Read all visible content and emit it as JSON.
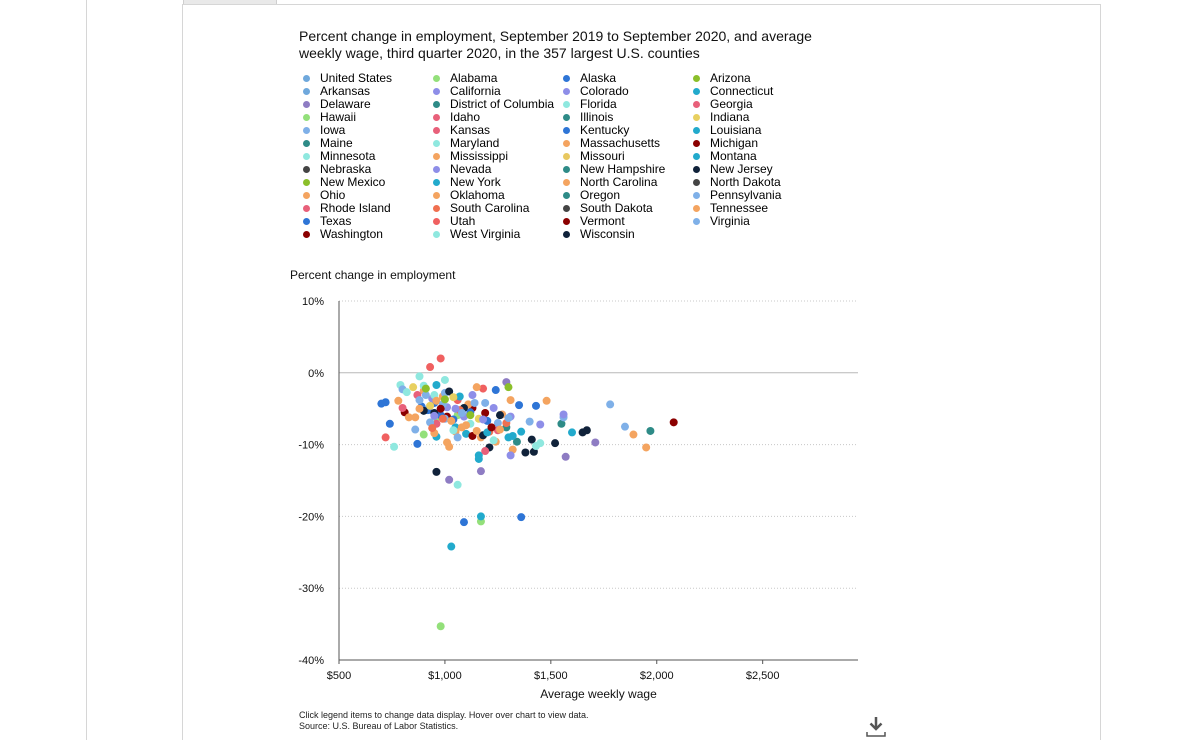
{
  "title": "Percent change in employment, September 2019 to September 2020, and average weekly wage, third quarter 2020, in the 357 largest U.S. counties",
  "footnote": {
    "line1": "Click legend items to change data display. Hover over chart to view data.",
    "line2": "Source: U.S. Bureau of Labor Statistics."
  },
  "icons": {
    "download": "download-icon"
  },
  "legend": [
    {
      "name": "United States",
      "color": "#6fa8dc"
    },
    {
      "name": "Arkansas",
      "color": "#6fa8dc"
    },
    {
      "name": "Delaware",
      "color": "#8e7cc3"
    },
    {
      "name": "Hawaii",
      "color": "#93e07a"
    },
    {
      "name": "Iowa",
      "color": "#7fb0e8"
    },
    {
      "name": "Maine",
      "color": "#2e8b87"
    },
    {
      "name": "Minnesota",
      "color": "#8fe8df"
    },
    {
      "name": "Nebraska",
      "color": "#444444"
    },
    {
      "name": "New Mexico",
      "color": "#8bbf2a"
    },
    {
      "name": "Ohio",
      "color": "#f4a460"
    },
    {
      "name": "Rhode Island",
      "color": "#e8607a"
    },
    {
      "name": "Texas",
      "color": "#2e75d6"
    },
    {
      "name": "Washington",
      "color": "#8b0000"
    },
    {
      "name": "Alabama",
      "color": "#93e07a"
    },
    {
      "name": "California",
      "color": "#8e8ee8"
    },
    {
      "name": "District of Columbia",
      "color": "#2e8b87"
    },
    {
      "name": "Idaho",
      "color": "#e8607a"
    },
    {
      "name": "Kansas",
      "color": "#e8607a"
    },
    {
      "name": "Maryland",
      "color": "#8fe8df"
    },
    {
      "name": "Mississippi",
      "color": "#f4a460"
    },
    {
      "name": "Nevada",
      "color": "#8e8ee8"
    },
    {
      "name": "New York",
      "color": "#22aacc"
    },
    {
      "name": "Oklahoma",
      "color": "#f4a460"
    },
    {
      "name": "South Carolina",
      "color": "#f07050"
    },
    {
      "name": "Utah",
      "color": "#f06060"
    },
    {
      "name": "West Virginia",
      "color": "#8fe8df"
    },
    {
      "name": "Alaska",
      "color": "#2e75d6"
    },
    {
      "name": "Colorado",
      "color": "#8e8ee8"
    },
    {
      "name": "Florida",
      "color": "#8fe8df"
    },
    {
      "name": "Illinois",
      "color": "#2e8b87"
    },
    {
      "name": "Kentucky",
      "color": "#2e75d6"
    },
    {
      "name": "Massachusetts",
      "color": "#f4a460"
    },
    {
      "name": "Missouri",
      "color": "#e8c860"
    },
    {
      "name": "New Hampshire",
      "color": "#2e8b87"
    },
    {
      "name": "North Carolina",
      "color": "#f4a460"
    },
    {
      "name": "Oregon",
      "color": "#2e8b87"
    },
    {
      "name": "South Dakota",
      "color": "#444444"
    },
    {
      "name": "Vermont",
      "color": "#8b0000"
    },
    {
      "name": "Wisconsin",
      "color": "#10223a"
    },
    {
      "name": "Arizona",
      "color": "#8bbf2a"
    },
    {
      "name": "Connecticut",
      "color": "#22aacc"
    },
    {
      "name": "Georgia",
      "color": "#e8607a"
    },
    {
      "name": "Indiana",
      "color": "#e8d060"
    },
    {
      "name": "Louisiana",
      "color": "#22aacc"
    },
    {
      "name": "Michigan",
      "color": "#8b0000"
    },
    {
      "name": "Montana",
      "color": "#22aacc"
    },
    {
      "name": "New Jersey",
      "color": "#10223a"
    },
    {
      "name": "North Dakota",
      "color": "#444444"
    },
    {
      "name": "Pennsylvania",
      "color": "#7fb0e8"
    },
    {
      "name": "Tennessee",
      "color": "#f4a460"
    },
    {
      "name": "Virginia",
      "color": "#7fb0e8"
    }
  ],
  "chart_data": {
    "type": "scatter",
    "title": "Percent change in employment, September 2019 to September 2020, and average weekly wage, third quarter 2020, in the 357 largest U.S. counties",
    "xlabel": "Average weekly wage",
    "ylabel": "Percent change in employment",
    "xlim": [
      500,
      2950
    ],
    "ylim": [
      -40,
      10
    ],
    "xticks": [
      500,
      1000,
      1500,
      2000,
      2500
    ],
    "xtick_labels": [
      "$500",
      "$1,000",
      "$1,500",
      "$2,000",
      "$2,500"
    ],
    "yticks": [
      10,
      0,
      -10,
      -20,
      -30,
      -40
    ],
    "ytick_labels": [
      "10%",
      "0%",
      "-10%",
      "-20%",
      "-30%",
      "-40%"
    ],
    "grid": "horizontal dotted",
    "series": [
      {
        "name": "Alabama",
        "color": "#93e07a",
        "points": [
          [
            980,
            -35.3
          ],
          [
            1170,
            -20.7
          ],
          [
            900,
            -8.6
          ],
          [
            960,
            -6.2
          ],
          [
            1060,
            -5.9
          ]
        ]
      },
      {
        "name": "Connecticut",
        "color": "#22aacc",
        "points": [
          [
            1030,
            -24.2
          ],
          [
            1170,
            -20.0
          ],
          [
            1160,
            -11.5
          ],
          [
            1300,
            -9.0
          ],
          [
            1600,
            -8.3
          ]
        ]
      },
      {
        "name": "Louisiana",
        "color": "#22aacc",
        "points": [
          [
            1160,
            -12.0
          ],
          [
            1050,
            -7.6
          ],
          [
            960,
            -8.9
          ],
          [
            1100,
            -8.5
          ]
        ]
      },
      {
        "name": "Kentucky",
        "color": "#2e75d6",
        "points": [
          [
            1090,
            -20.8
          ],
          [
            1360,
            -20.1
          ],
          [
            700,
            -4.3
          ],
          [
            720,
            -4.1
          ],
          [
            740,
            -7.1
          ],
          [
            870,
            -9.9
          ],
          [
            1240,
            -2.4
          ]
        ]
      },
      {
        "name": "Delaware",
        "color": "#8e7cc3",
        "points": [
          [
            1020,
            -14.9
          ],
          [
            1170,
            -13.7
          ],
          [
            1570,
            -11.7
          ],
          [
            1710,
            -9.7
          ],
          [
            1290,
            -1.3
          ]
        ]
      },
      {
        "name": "Minnesota",
        "color": "#8fe8df",
        "points": [
          [
            1060,
            -15.6
          ],
          [
            760,
            -10.3
          ],
          [
            790,
            -1.7
          ],
          [
            880,
            -0.5
          ],
          [
            1000,
            -1.0
          ]
        ]
      },
      {
        "name": "New Jersey",
        "color": "#10223a",
        "points": [
          [
            960,
            -13.8
          ],
          [
            1210,
            -10.4
          ],
          [
            1380,
            -11.1
          ],
          [
            1410,
            -9.3
          ],
          [
            1420,
            -11.0
          ],
          [
            1520,
            -9.8
          ],
          [
            1650,
            -8.3
          ],
          [
            1670,
            -8.0
          ]
        ]
      },
      {
        "name": "Utah",
        "color": "#f06060",
        "points": [
          [
            930,
            0.8
          ],
          [
            980,
            2.0
          ],
          [
            720,
            -9.0
          ],
          [
            1180,
            -2.2
          ],
          [
            1060,
            -3.8
          ]
        ]
      },
      {
        "name": "Michigan",
        "color": "#8b0000",
        "points": [
          [
            2080,
            -6.9
          ],
          [
            810,
            -5.5
          ],
          [
            1010,
            -6.1
          ],
          [
            1130,
            -4.9
          ],
          [
            1190,
            -5.6
          ]
        ]
      },
      {
        "name": "Illinois",
        "color": "#2e8b87",
        "points": [
          [
            1970,
            -8.1
          ],
          [
            1340,
            -9.6
          ],
          [
            1290,
            -7.6
          ],
          [
            1550,
            -7.1
          ]
        ]
      },
      {
        "name": "Tennessee",
        "color": "#f4a460",
        "points": [
          [
            1950,
            -10.4
          ],
          [
            1890,
            -8.6
          ],
          [
            1480,
            -3.9
          ],
          [
            830,
            -6.2
          ],
          [
            1050,
            -8.2
          ],
          [
            1320,
            -10.7
          ]
        ]
      },
      {
        "name": "Pennsylvania",
        "color": "#7fb0e8",
        "points": [
          [
            1850,
            -7.5
          ],
          [
            1780,
            -4.4
          ],
          [
            1560,
            -6.2
          ],
          [
            1250,
            -7.0
          ],
          [
            1000,
            -6.4
          ],
          [
            860,
            -7.9
          ]
        ]
      },
      {
        "name": "Texas",
        "color": "#2e75d6",
        "points": [
          [
            890,
            -4.7
          ],
          [
            920,
            -5.2
          ],
          [
            950,
            -4.2
          ],
          [
            980,
            -5.9
          ],
          [
            1040,
            -6.5
          ],
          [
            1120,
            -5.5
          ],
          [
            1200,
            -6.7
          ],
          [
            1350,
            -4.5
          ],
          [
            1430,
            -4.6
          ]
        ]
      },
      {
        "name": "California",
        "color": "#8e8ee8",
        "points": [
          [
            940,
            -3.6
          ],
          [
            1010,
            -4.8
          ],
          [
            1090,
            -6.1
          ],
          [
            1130,
            -3.1
          ],
          [
            1230,
            -4.9
          ],
          [
            1310,
            -6.1
          ],
          [
            1450,
            -7.2
          ],
          [
            1560,
            -5.8
          ]
        ]
      },
      {
        "name": "Ohio",
        "color": "#f4a460",
        "points": [
          [
            860,
            -6.2
          ],
          [
            950,
            -8.4
          ],
          [
            1020,
            -10.3
          ],
          [
            1080,
            -7.6
          ],
          [
            1150,
            -2.0
          ],
          [
            1270,
            -5.8
          ],
          [
            1310,
            -3.8
          ]
        ]
      },
      {
        "name": "Massachusetts",
        "color": "#f4a460",
        "points": [
          [
            900,
            -2.5
          ],
          [
            990,
            -3.3
          ],
          [
            1110,
            -4.4
          ],
          [
            1170,
            -9.0
          ],
          [
            1240,
            -9.6
          ]
        ]
      },
      {
        "name": "Georgia",
        "color": "#e8607a",
        "points": [
          [
            800,
            -4.9
          ],
          [
            870,
            -3.1
          ],
          [
            960,
            -7.1
          ],
          [
            1190,
            -10.9
          ],
          [
            1250,
            -8.0
          ]
        ]
      },
      {
        "name": "Iowa",
        "color": "#7fb0e8",
        "points": [
          [
            800,
            -2.3
          ],
          [
            880,
            -3.8
          ],
          [
            930,
            -6.9
          ],
          [
            1000,
            -2.8
          ],
          [
            1060,
            -9.0
          ],
          [
            1140,
            -4.2
          ]
        ]
      },
      {
        "name": "Wisconsin",
        "color": "#10223a",
        "points": [
          [
            900,
            -5.3
          ],
          [
            950,
            -5.6
          ],
          [
            1020,
            -2.6
          ],
          [
            1090,
            -4.9
          ],
          [
            1180,
            -8.7
          ],
          [
            1260,
            -5.9
          ]
        ]
      },
      {
        "name": "Florida",
        "color": "#8fe8df",
        "points": [
          [
            900,
            -1.8
          ],
          [
            950,
            -3.1
          ],
          [
            1040,
            -8.0
          ],
          [
            1120,
            -7.1
          ],
          [
            1450,
            -9.8
          ]
        ]
      },
      {
        "name": "South Carolina",
        "color": "#f07050",
        "points": [
          [
            940,
            -7.7
          ],
          [
            990,
            -6.4
          ],
          [
            1070,
            -5.2
          ],
          [
            1210,
            -8.2
          ],
          [
            1290,
            -7.0
          ]
        ]
      },
      {
        "name": "North Carolina",
        "color": "#f4a460",
        "points": [
          [
            880,
            -5.0
          ],
          [
            960,
            -3.9
          ],
          [
            1030,
            -6.7
          ],
          [
            1100,
            -7.3
          ],
          [
            1260,
            -7.9
          ]
        ]
      },
      {
        "name": "New York",
        "color": "#22aacc",
        "points": [
          [
            960,
            -1.7
          ],
          [
            1070,
            -3.3
          ],
          [
            1200,
            -8.3
          ],
          [
            1320,
            -8.8
          ],
          [
            1360,
            -8.2
          ]
        ]
      },
      {
        "name": "Virginia",
        "color": "#7fb0e8",
        "points": [
          [
            910,
            -3.1
          ],
          [
            990,
            -4.4
          ],
          [
            1080,
            -5.6
          ],
          [
            1190,
            -4.2
          ],
          [
            1300,
            -6.3
          ],
          [
            1400,
            -6.8
          ]
        ]
      },
      {
        "name": "Indiana",
        "color": "#e8d060",
        "points": [
          [
            850,
            -2.0
          ],
          [
            930,
            -4.6
          ],
          [
            1040,
            -3.4
          ],
          [
            1160,
            -6.4
          ]
        ]
      },
      {
        "name": "Arizona",
        "color": "#8bbf2a",
        "points": [
          [
            910,
            -2.2
          ],
          [
            1000,
            -3.7
          ],
          [
            1120,
            -5.9
          ],
          [
            1300,
            -2.0
          ]
        ]
      },
      {
        "name": "Colorado",
        "color": "#8e8ee8",
        "points": [
          [
            950,
            -6.0
          ],
          [
            1050,
            -5.0
          ],
          [
            1180,
            -6.5
          ],
          [
            1310,
            -11.5
          ]
        ]
      },
      {
        "name": "Washington",
        "color": "#8b0000",
        "points": [
          [
            1130,
            -8.8
          ],
          [
            1220,
            -7.6
          ],
          [
            980,
            -5.0
          ]
        ]
      },
      {
        "name": "Maryland",
        "color": "#8fe8df",
        "points": [
          [
            820,
            -2.7
          ],
          [
            1230,
            -9.4
          ],
          [
            1430,
            -10.2
          ]
        ]
      },
      {
        "name": "Oklahoma",
        "color": "#f4a460",
        "points": [
          [
            780,
            -3.9
          ],
          [
            1010,
            -9.7
          ],
          [
            1150,
            -8.1
          ]
        ]
      }
    ]
  }
}
